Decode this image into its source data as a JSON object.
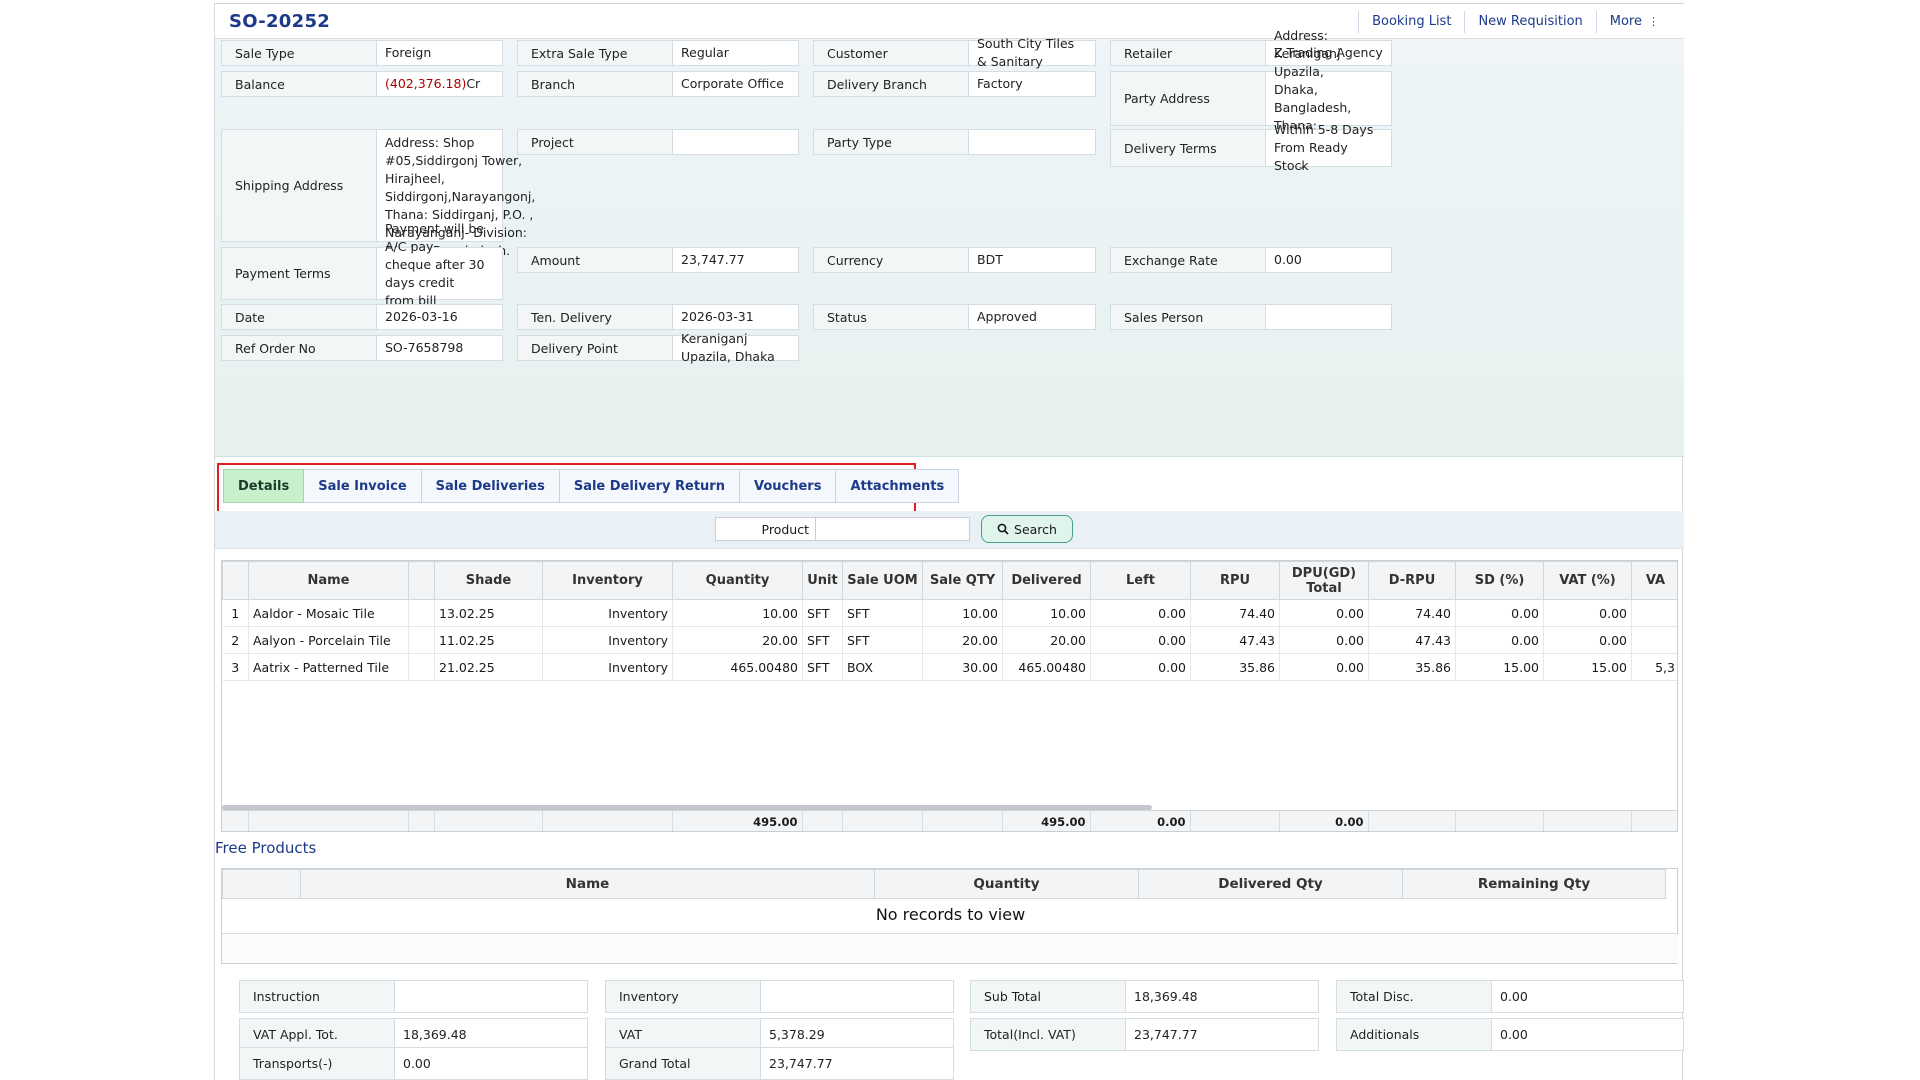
{
  "header": {
    "title": "SO-20252",
    "links": [
      "Booking List",
      "New Requisition",
      "More"
    ],
    "more_icon": "⋮"
  },
  "info": {
    "sale_type": {
      "label": "Sale Type",
      "value": "Foreign"
    },
    "extra_sale_type": {
      "label": "Extra Sale Type",
      "value": "Regular"
    },
    "customer": {
      "label": "Customer",
      "value": "South City Tiles & Sanitary"
    },
    "retailer": {
      "label": "Retailer",
      "value": "Z Trading Agency"
    },
    "balance": {
      "label": "Balance",
      "value_negative": "(402,376.18)",
      "suffix": "Cr"
    },
    "branch": {
      "label": "Branch",
      "value": "Corporate Office"
    },
    "delivery_branch": {
      "label": "Delivery Branch",
      "value": "Factory"
    },
    "party_address": {
      "label": "Party Address",
      "value": "Address: Keraniganj Upazila,\nDhaka, Bangladesh, Thana: ,\nP.O. -, Bangladesh."
    },
    "shipping_address": {
      "label": "Shipping Address",
      "value": "Address: Shop\n#05,Siddirgonj Tower,\nHirajheel,\nSiddirgonj,Narayangonj,\nThana: Siddirganj, P.O. ,\nNarayanganj- Division:\nDhaka, Bangladesh."
    },
    "project": {
      "label": "Project",
      "value": ""
    },
    "party_type": {
      "label": "Party Type",
      "value": ""
    },
    "delivery_terms": {
      "label": "Delivery Terms",
      "value": "Within 5-8 Days From Ready\nStock"
    },
    "payment_terms": {
      "label": "Payment Terms",
      "value": "Payment will be A/C pay\ncheque after 30 days credit\nfrom bill submission date."
    },
    "amount": {
      "label": "Amount",
      "value": "23,747.77"
    },
    "currency": {
      "label": "Currency",
      "value": "BDT"
    },
    "exchange_rate": {
      "label": "Exchange Rate",
      "value": "0.00"
    },
    "date": {
      "label": "Date",
      "value": "2026-03-16"
    },
    "ten_delivery": {
      "label": "Ten. Delivery",
      "value": "2026-03-31"
    },
    "status": {
      "label": "Status",
      "value": "Approved"
    },
    "sales_person": {
      "label": "Sales Person",
      "value": ""
    },
    "ref_order_no": {
      "label": "Ref Order No",
      "value": "SO-7658798"
    },
    "delivery_point": {
      "label": "Delivery Point",
      "value": "Keraniganj Upazila, Dhaka"
    }
  },
  "tabs": [
    "Details",
    "Sale Invoice",
    "Sale Deliveries",
    "Sale Delivery Return",
    "Vouchers",
    "Attachments"
  ],
  "active_tab": "Details",
  "search": {
    "product_label": "Product",
    "product_value": "",
    "button_label": "Search"
  },
  "details_table": {
    "columns": [
      "",
      "Name",
      "",
      "Shade",
      "Inventory",
      "Quantity",
      "Unit",
      "Sale UOM",
      "Sale QTY",
      "Delivered",
      "Left",
      "RPU",
      "DPU(GD)\nTotal",
      "D-RPU",
      "SD (%)",
      "VAT (%)",
      "VA"
    ],
    "rows": [
      [
        "1",
        "Aaldor - Mosaic Tile",
        "",
        "13.02.25",
        "Inventory",
        "10.00",
        "SFT",
        "SFT",
        "10.00",
        "10.00",
        "0.00",
        "74.40",
        "0.00",
        "74.40",
        "0.00",
        "0.00",
        ""
      ],
      [
        "2",
        "Aalyon - Porcelain Tile",
        "",
        "11.02.25",
        "Inventory",
        "20.00",
        "SFT",
        "SFT",
        "20.00",
        "20.00",
        "0.00",
        "47.43",
        "0.00",
        "47.43",
        "0.00",
        "0.00",
        ""
      ],
      [
        "3",
        "Aatrix - Patterned Tile",
        "",
        "21.02.25",
        "Inventory",
        "465.00480",
        "SFT",
        "BOX",
        "30.00",
        "465.00480",
        "0.00",
        "35.86",
        "0.00",
        "35.86",
        "15.00",
        "15.00",
        "5,3"
      ]
    ],
    "totals": [
      "",
      "",
      "",
      "",
      "",
      "495.00",
      "",
      "",
      "",
      "495.00",
      "0.00",
      "",
      "0.00",
      "",
      "",
      "",
      ""
    ]
  },
  "free_products": {
    "title": "Free Products",
    "columns": [
      "",
      "Name",
      "Quantity",
      "Delivered Qty",
      "Remaining Qty"
    ],
    "empty_text": "No records to view"
  },
  "summary": {
    "instruction": {
      "label": "Instruction",
      "value": ""
    },
    "inventory": {
      "label": "Inventory",
      "value": ""
    },
    "sub_total": {
      "label": "Sub Total",
      "value": "18,369.48"
    },
    "total_disc": {
      "label": "Total Disc.",
      "value": "0.00"
    },
    "vat_appl_tot": {
      "label": "VAT Appl. Tot.",
      "value": "18,369.48"
    },
    "vat": {
      "label": "VAT",
      "value": "5,378.29"
    },
    "total_incl_vat": {
      "label": "Total(Incl. VAT)",
      "value": "23,747.77"
    },
    "additionals": {
      "label": "Additionals",
      "value": "0.00"
    },
    "transports": {
      "label": "Transports(-)",
      "value": "0.00"
    },
    "grand_total": {
      "label": "Grand Total",
      "value": "23,747.77"
    }
  },
  "colors": {
    "accent": "#1d3a8a",
    "active_tab": "#c9f0cc",
    "highlight": "#e02020",
    "negative": "#b00000"
  }
}
